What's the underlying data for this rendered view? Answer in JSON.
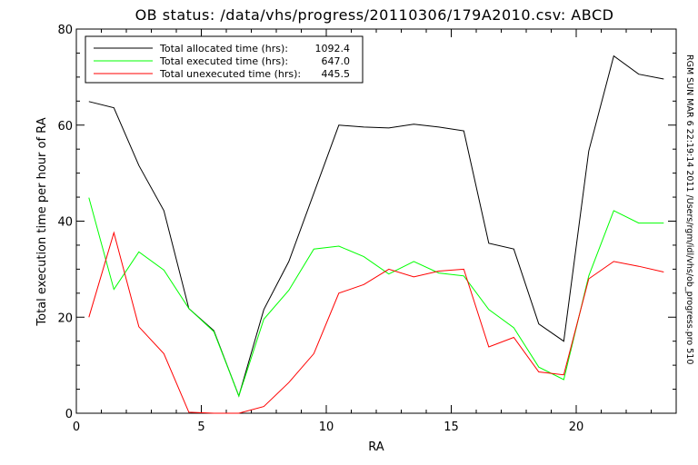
{
  "chart_data": {
    "type": "line",
    "title": "OB status: /data/vhs/progress/20110306/179A2010.csv: ABCD",
    "xlabel": "RA",
    "ylabel": "Total execution time per hour of RA",
    "xlim": [
      0,
      24
    ],
    "ylim": [
      0,
      80
    ],
    "x_ticks": [
      "0",
      "5",
      "10",
      "15",
      "20"
    ],
    "y_ticks": [
      "0",
      "20",
      "40",
      "60",
      "80"
    ],
    "grid": false,
    "legend_position": "top-left",
    "side_annotation": "RGM SUN MAR 6 22:19:14 2011 /Users/rgm/idl/vhs/ob_progress.pro 510",
    "x": [
      0.5,
      1.5,
      2.5,
      3.5,
      4.5,
      5.5,
      6.5,
      7.5,
      8.5,
      9.5,
      10.5,
      11.5,
      12.5,
      13.5,
      14.5,
      15.5,
      16.5,
      17.5,
      18.5,
      19.5,
      20.5,
      21.5,
      22.5,
      23.5
    ],
    "series": [
      {
        "name": "Total allocated time (hrs):",
        "total": "1092.4",
        "color": "#000000",
        "values": [
          64.9,
          63.6,
          51.6,
          42.2,
          21.8,
          17.2,
          3.6,
          21.6,
          31.6,
          45.8,
          60.0,
          59.6,
          59.4,
          60.2,
          59.6,
          58.8,
          35.4,
          34.2,
          18.6,
          15.0,
          54.6,
          74.4,
          70.6,
          69.6
        ]
      },
      {
        "name": "Total executed time (hrs):",
        "total": "647.0",
        "color": "#00ff00",
        "values": [
          44.9,
          25.8,
          33.6,
          29.8,
          21.8,
          17.0,
          3.6,
          19.6,
          25.6,
          34.2,
          34.8,
          32.6,
          29.0,
          31.6,
          29.2,
          28.6,
          21.6,
          17.8,
          9.6,
          7.0,
          28.6,
          42.2,
          39.6,
          39.6
        ]
      },
      {
        "name": "Total unexecuted time (hrs):",
        "total": "445.5",
        "color": "#ff0000",
        "values": [
          20.0,
          37.6,
          18.0,
          12.4,
          0.2,
          0.0,
          0.0,
          1.4,
          6.4,
          12.4,
          25.0,
          26.8,
          30.0,
          28.4,
          29.6,
          30.0,
          13.8,
          15.8,
          8.6,
          8.0,
          28.0,
          31.6,
          30.6,
          29.4
        ]
      }
    ]
  }
}
